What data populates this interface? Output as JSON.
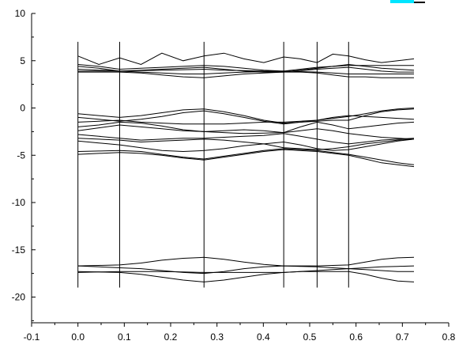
{
  "chart_data": {
    "type": "line",
    "title": "",
    "xlabel": "",
    "ylabel": "",
    "xlim": [
      -0.1,
      0.8
    ],
    "ylim": [
      -22.5,
      10
    ],
    "x_ticks": [
      -0.1,
      0.0,
      0.1,
      0.2,
      0.3,
      0.4,
      0.5,
      0.6,
      0.7,
      0.8
    ],
    "x_tick_labels": [
      "-0.1",
      "0.0",
      "0.1",
      "0.2",
      "0.3",
      "0.4",
      "0.5",
      "0.6",
      "0.7",
      "0.8"
    ],
    "y_ticks": [
      10,
      5,
      0,
      -5,
      -10,
      -15,
      -20
    ],
    "y_tick_labels": [
      "10",
      "5",
      "0",
      "-5",
      "-10",
      "-15",
      "-20"
    ],
    "grid": false,
    "line_color": "#000000",
    "legend_colors": [
      "#00e5ff",
      "#000000"
    ],
    "high_symmetry_lines": {
      "x": [
        0.0,
        0.09,
        0.272,
        0.444,
        0.516,
        0.584
      ],
      "y_range": [
        -19.0,
        7.0
      ]
    },
    "x": [
      0.0,
      0.045,
      0.09,
      0.136,
      0.181,
      0.227,
      0.272,
      0.315,
      0.358,
      0.401,
      0.444,
      0.48,
      0.516,
      0.55,
      0.584,
      0.62,
      0.655,
      0.69,
      0.725
    ],
    "series": [
      {
        "values": [
          -17.3,
          -17.35,
          -17.4,
          -17.6,
          -17.9,
          -18.2,
          -18.4,
          -18.2,
          -17.9,
          -17.6,
          -17.4,
          -17.3,
          -17.3,
          -17.3,
          -17.3,
          -17.6,
          -18.0,
          -18.3,
          -18.4
        ]
      },
      {
        "values": [
          -17.4,
          -17.35,
          -17.3,
          -17.3,
          -17.3,
          -17.35,
          -17.4,
          -17.4,
          -17.4,
          -17.4,
          -17.4,
          -17.3,
          -17.2,
          -17.1,
          -17.0,
          -17.1,
          -17.2,
          -17.3,
          -17.3
        ]
      },
      {
        "values": [
          -16.7,
          -16.8,
          -16.9,
          -17.0,
          -17.2,
          -17.4,
          -17.5,
          -17.3,
          -17.0,
          -16.8,
          -16.7,
          -16.75,
          -16.8,
          -16.9,
          -17.0,
          -16.9,
          -16.8,
          -16.75,
          -16.7
        ]
      },
      {
        "values": [
          -16.7,
          -16.65,
          -16.6,
          -16.4,
          -16.1,
          -15.9,
          -15.8,
          -16.0,
          -16.3,
          -16.55,
          -16.7,
          -16.7,
          -16.7,
          -16.65,
          -16.6,
          -16.3,
          -16.0,
          -15.85,
          -15.8
        ]
      },
      {
        "values": [
          -4.9,
          -4.8,
          -4.7,
          -4.8,
          -5.0,
          -5.3,
          -5.5,
          -5.2,
          -4.9,
          -4.6,
          -4.4,
          -4.5,
          -4.6,
          -4.8,
          -5.0,
          -5.4,
          -5.8,
          -6.0,
          -6.2
        ]
      },
      {
        "values": [
          -4.6,
          -4.55,
          -4.5,
          -4.6,
          -4.9,
          -5.2,
          -5.4,
          -5.1,
          -4.8,
          -4.5,
          -4.3,
          -4.4,
          -4.5,
          -4.7,
          -4.9,
          -5.2,
          -5.5,
          -5.8,
          -6.0
        ]
      },
      {
        "values": [
          -3.5,
          -3.7,
          -3.9,
          -4.2,
          -4.5,
          -4.6,
          -4.5,
          -4.3,
          -4.0,
          -3.8,
          -3.6,
          -3.9,
          -4.3,
          -4.5,
          -4.4,
          -4.1,
          -3.8,
          -3.5,
          -3.3
        ]
      },
      {
        "values": [
          -3.2,
          -3.3,
          -3.4,
          -3.6,
          -3.5,
          -3.4,
          -3.3,
          -3.4,
          -3.6,
          -3.8,
          -4.2,
          -4.3,
          -4.4,
          -4.3,
          -4.1,
          -3.8,
          -3.6,
          -3.4,
          -3.3
        ]
      },
      {
        "values": [
          -2.8,
          -3.0,
          -3.2,
          -3.4,
          -3.3,
          -3.2,
          -3.2,
          -3.1,
          -3.0,
          -2.9,
          -2.7,
          -3.0,
          -3.3,
          -3.6,
          -3.8,
          -3.6,
          -3.4,
          -3.3,
          -3.2
        ]
      },
      {
        "values": [
          -2.4,
          -2.1,
          -1.8,
          -2.0,
          -2.2,
          -2.4,
          -2.5,
          -2.6,
          -2.7,
          -2.65,
          -2.6,
          -2.4,
          -2.2,
          -2.4,
          -2.7,
          -2.9,
          -3.1,
          -3.2,
          -3.3
        ]
      },
      {
        "values": [
          -2.0,
          -1.8,
          -1.5,
          -1.6,
          -1.9,
          -2.3,
          -2.5,
          -2.4,
          -2.3,
          -2.4,
          -2.6,
          -2.0,
          -1.5,
          -1.8,
          -2.2,
          -2.0,
          -1.8,
          -1.6,
          -1.5
        ]
      },
      {
        "values": [
          -1.5,
          -1.4,
          -1.3,
          -1.5,
          -1.6,
          -1.7,
          -1.7,
          -1.7,
          -1.6,
          -1.5,
          -1.5,
          -1.4,
          -1.3,
          -1.0,
          -0.8,
          -0.9,
          -1.0,
          -1.1,
          -1.2
        ]
      },
      {
        "values": [
          -1.0,
          -1.2,
          -1.4,
          -1.2,
          -0.9,
          -0.5,
          -0.3,
          -0.6,
          -1.0,
          -1.4,
          -1.7,
          -1.5,
          -1.3,
          -1.1,
          -0.9,
          -0.6,
          -0.3,
          -0.1,
          0.0
        ]
      },
      {
        "values": [
          -0.6,
          -0.8,
          -1.0,
          -0.8,
          -0.5,
          -0.2,
          -0.1,
          -0.4,
          -0.8,
          -1.3,
          -1.6,
          -1.5,
          -1.4,
          -1.3,
          -1.3,
          -0.8,
          -0.4,
          -0.2,
          -0.1
        ]
      },
      {
        "values": [
          3.8,
          3.8,
          3.8,
          3.7,
          3.5,
          3.3,
          3.2,
          3.4,
          3.6,
          3.7,
          3.8,
          3.8,
          3.7,
          3.5,
          3.3,
          3.3,
          3.2,
          3.2,
          3.2
        ]
      },
      {
        "values": [
          3.9,
          3.9,
          3.9,
          3.8,
          3.7,
          3.6,
          3.6,
          3.7,
          3.8,
          3.85,
          3.9,
          3.85,
          3.8,
          3.7,
          3.6,
          3.6,
          3.6,
          3.6,
          3.6
        ]
      },
      {
        "values": [
          4.1,
          4.0,
          3.9,
          3.95,
          4.0,
          4.05,
          4.1,
          4.0,
          3.95,
          3.9,
          3.85,
          3.95,
          4.1,
          4.2,
          4.3,
          4.1,
          3.9,
          3.8,
          3.8
        ]
      },
      {
        "values": [
          4.4,
          4.2,
          3.9,
          4.0,
          4.1,
          4.2,
          4.3,
          4.1,
          3.9,
          3.8,
          3.8,
          4.0,
          4.2,
          4.4,
          4.6,
          4.4,
          4.2,
          4.1,
          4.0
        ]
      },
      {
        "values": [
          4.6,
          4.4,
          4.1,
          4.2,
          4.3,
          4.4,
          4.5,
          4.4,
          4.2,
          4.0,
          3.9,
          4.1,
          4.3,
          4.4,
          4.5,
          4.5,
          4.5,
          4.5,
          4.5
        ]
      },
      {
        "values": [
          5.5,
          4.6,
          5.3,
          4.6,
          5.8,
          5.0,
          5.5,
          5.8,
          5.2,
          4.8,
          5.4,
          5.2,
          4.8,
          5.7,
          5.5,
          5.1,
          4.8,
          5.0,
          5.2
        ]
      }
    ]
  }
}
